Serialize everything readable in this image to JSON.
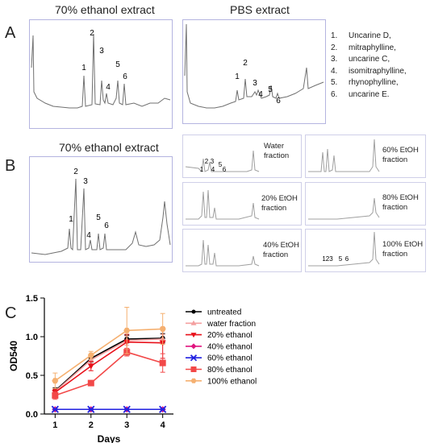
{
  "panels": {
    "a": {
      "letter": "A",
      "left_title": "70% ethanol extract",
      "right_title": "PBS extract",
      "left_peaks": [
        "1",
        "2",
        "3",
        "4",
        "5",
        "6"
      ],
      "right_peaks": [
        "1",
        "2",
        "3",
        "4",
        "5",
        "6"
      ],
      "compounds": [
        {
          "num": "1.",
          "name": "Uncarine D,"
        },
        {
          "num": "2.",
          "name": "mitraphylline,"
        },
        {
          "num": "3.",
          "name": "uncarine C,"
        },
        {
          "num": "4.",
          "name": "isomitraphylline,"
        },
        {
          "num": "5.",
          "name": "rhynophylline,"
        },
        {
          "num": "6.",
          "name": "uncarine E."
        }
      ]
    },
    "b": {
      "letter": "B",
      "main_title": "70% ethanol extract",
      "main_peaks": [
        "1",
        "2",
        "3",
        "4",
        "5",
        "6"
      ],
      "fractions": [
        {
          "line1": "Water",
          "line2": "fraction"
        },
        {
          "line1": "60% EtOH",
          "line2": "fraction"
        },
        {
          "line1": "20% EtOH",
          "line2": "fraction"
        },
        {
          "line1": "80% EtOH",
          "line2": "fraction"
        },
        {
          "line1": "40% EtOH",
          "line2": "fraction"
        },
        {
          "line1": "100% EtOH",
          "line2": "fraction"
        }
      ],
      "water_peaks": [
        "1",
        "2",
        "3",
        "4",
        "5",
        "6"
      ],
      "hundred_peaks": [
        "123",
        "5",
        "6"
      ]
    },
    "c": {
      "letter": "C"
    }
  },
  "colors": {
    "chromatogram": "#707070",
    "frame": "#b4b4e0",
    "untreated": "#000000",
    "water_fraction": "#f4a0a0",
    "ethanol20": "#e8101a",
    "ethanol40": "#e0157f",
    "ethanol60": "#2020e0",
    "ethanol80": "#f24848",
    "ethanol100": "#f5b070"
  },
  "chart_data": {
    "type": "line",
    "xlabel": "Days",
    "ylabel": "OD540",
    "x": [
      1,
      2,
      3,
      4
    ],
    "xticks": [
      "1",
      "2",
      "3",
      "4"
    ],
    "yticks": [
      "0.0",
      "0.5",
      "1.0",
      "1.5"
    ],
    "xlim": [
      0.7,
      4.3
    ],
    "ylim": [
      0,
      1.5
    ],
    "legend_position": "right",
    "series": [
      {
        "name": "untreated",
        "color": "#000000",
        "marker": "circle",
        "values": [
          0.3,
          0.72,
          0.97,
          0.98
        ],
        "errors": [
          0.04,
          0.05,
          0.05,
          0.06
        ]
      },
      {
        "name": "water fraction",
        "color": "#f4a0a0",
        "marker": "triangle-up",
        "values": [
          0.29,
          0.7,
          0.95,
          0.97
        ],
        "errors": [
          0.04,
          0.05,
          0.06,
          0.06
        ]
      },
      {
        "name": "20% ethanol",
        "color": "#e8101a",
        "marker": "triangle-down",
        "values": [
          0.28,
          0.62,
          0.93,
          0.92
        ],
        "errors": [
          0.04,
          0.06,
          0.1,
          0.2
        ]
      },
      {
        "name": "40% ethanol",
        "color": "#e0157f",
        "marker": "diamond",
        "values": [
          0.06,
          0.06,
          0.06,
          0.06
        ],
        "errors": [
          0.005,
          0.005,
          0.005,
          0.005
        ]
      },
      {
        "name": "60% ethanol",
        "color": "#2020e0",
        "marker": "x",
        "values": [
          0.06,
          0.06,
          0.06,
          0.06
        ],
        "errors": [
          0.005,
          0.005,
          0.005,
          0.005
        ]
      },
      {
        "name": "80% ethanol",
        "color": "#f24848",
        "marker": "square",
        "values": [
          0.24,
          0.4,
          0.8,
          0.66
        ],
        "errors": [
          0.05,
          0.03,
          0.05,
          0.12
        ]
      },
      {
        "name": "100% ethanol",
        "color": "#f5b070",
        "marker": "hexagon",
        "values": [
          0.43,
          0.76,
          1.08,
          1.1
        ],
        "errors": [
          0.1,
          0.05,
          0.3,
          0.2
        ]
      }
    ]
  }
}
